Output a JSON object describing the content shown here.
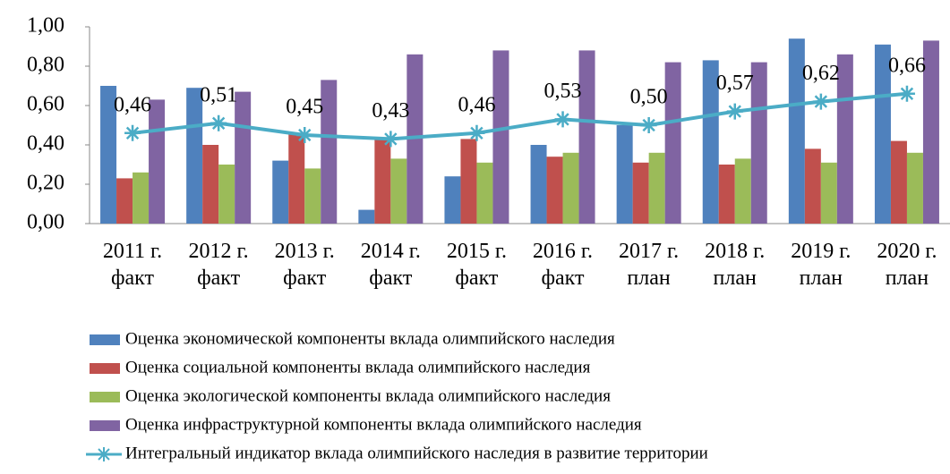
{
  "chart_data": {
    "type": "bar",
    "categories": [
      "2011 г.\nфакт",
      "2012 г.\nфакт",
      "2013 г.\nфакт",
      "2014 г.\nфакт",
      "2015 г.\nфакт",
      "2016 г.\nфакт",
      "2017 г.\nплан",
      "2018 г.\nплан",
      "2019 г.\nплан",
      "2020 г.\nплан"
    ],
    "series": [
      {
        "name": "Оценка экономической компоненты вклада олимпийского наследия",
        "color": "#4f81bd",
        "values": [
          0.7,
          0.69,
          0.32,
          0.07,
          0.24,
          0.4,
          0.5,
          0.83,
          0.94,
          0.91
        ]
      },
      {
        "name": "Оценка социальной компоненты вклада олимпийского наследия",
        "color": "#c0504d",
        "values": [
          0.23,
          0.4,
          0.46,
          0.43,
          0.43,
          0.34,
          0.31,
          0.3,
          0.38,
          0.42
        ]
      },
      {
        "name": "Оценка экологической компоненты вклада олимпийского наследия",
        "color": "#9bbb59",
        "values": [
          0.26,
          0.3,
          0.28,
          0.33,
          0.31,
          0.36,
          0.36,
          0.33,
          0.31,
          0.36
        ]
      },
      {
        "name": "Оценка инфраструктурной компоненты вклада олимпийского наследия",
        "color": "#8064a2",
        "values": [
          0.63,
          0.67,
          0.73,
          0.86,
          0.88,
          0.88,
          0.82,
          0.82,
          0.86,
          0.93
        ]
      },
      {
        "name": "Интегральный индикатор вклада олимпийского наследия в развитие территории",
        "color": "#4bacc6",
        "type": "line",
        "values": [
          0.46,
          0.51,
          0.45,
          0.43,
          0.46,
          0.53,
          0.5,
          0.57,
          0.62,
          0.66
        ],
        "value_labels": [
          "0,46",
          "0,51",
          "0,45",
          "0,43",
          "0,46",
          "0,53",
          "0,50",
          "0,57",
          "0,62",
          "0,66"
        ]
      }
    ],
    "ylim": [
      0,
      1
    ],
    "yticks": [
      {
        "value": 0,
        "label": "0,00"
      },
      {
        "value": 0.2,
        "label": "0,20"
      },
      {
        "value": 0.4,
        "label": "0,40"
      },
      {
        "value": 0.6,
        "label": "0,60"
      },
      {
        "value": 0.8,
        "label": "0,80"
      },
      {
        "value": 1,
        "label": "1,00"
      }
    ],
    "grid": false,
    "legend": "bottom"
  }
}
